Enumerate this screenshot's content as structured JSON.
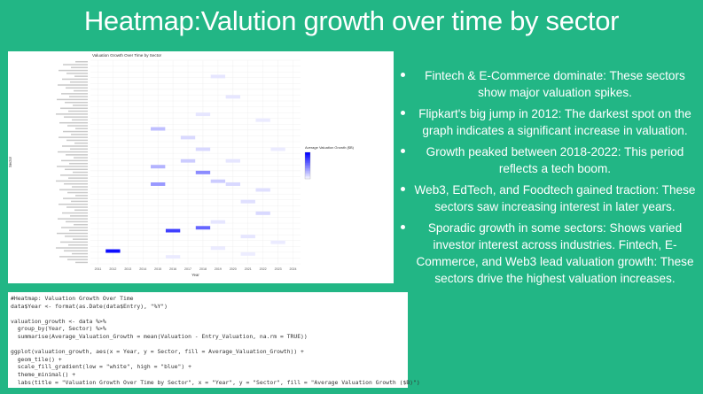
{
  "slide": {
    "title": "Heatmap:Valution growth over time by sector"
  },
  "bullets": [
    "Fintech & E-Commerce dominate: These sectors show major valuation spikes.",
    "Flipkart's big jump in 2012: The darkest spot on the graph indicates a significant increase in valuation.",
    "Growth peaked between 2018-2022: This period reflects a tech boom.",
    "Web3, EdTech, and Foodtech gained traction: These sectors saw increasing interest in later years.",
    "Sporadic growth in some sectors: Shows varied investor interest across industries. Fintech, E-Commerce, and Web3 lead valuation growth: These sectors drive the highest valuation increases."
  ],
  "code_lines": [
    "#Heatmap: Valuation Growth Over Time",
    "data$Year <- format(as.Date(data$Entry), \"%Y\")",
    "",
    "valuation_growth <- data %>%",
    "  group_by(Year, Sector) %>%",
    "  summarise(Average_Valuation_Growth = mean(Valuation - Entry_Valuation, na.rm = TRUE))",
    "",
    "ggplot(valuation_growth, aes(x = Year, y = Sector, fill = Average_Valuation_Growth)) +",
    "  geom_tile() +",
    "  scale_fill_gradient(low = \"white\", high = \"blue\") +",
    "  theme_minimal() +",
    "  labs(title = \"Valuation Growth Over Time by Sector\", x = \"Year\", y = \"Sector\", fill = \"Average Valuation Growth ($B)\")"
  ],
  "chart_data": {
    "type": "heatmap",
    "title": "Valuation Growth Over Time by Sector",
    "xlabel": "Year",
    "ylabel": "Sector",
    "legend_title": "Average Valuation Growth ($B)",
    "legend_position": "right",
    "color_low": "#ffffff",
    "color_high": "#0000ff",
    "value_range": [
      0,
      1
    ],
    "x": [
      "2011",
      "2012",
      "2013",
      "2014",
      "2015",
      "2016",
      "2017",
      "2018",
      "2019",
      "2020",
      "2021",
      "2022",
      "2023",
      "2024"
    ],
    "y_count": 70,
    "tiles": [
      {
        "x": "2012",
        "y_index": 65,
        "value": 0.95
      },
      {
        "x": "2016",
        "y_index": 58,
        "value": 0.75
      },
      {
        "x": "2018",
        "y_index": 57,
        "value": 0.6
      },
      {
        "x": "2018",
        "y_index": 38,
        "value": 0.45
      },
      {
        "x": "2015",
        "y_index": 42,
        "value": 0.4
      },
      {
        "x": "2015",
        "y_index": 36,
        "value": 0.3
      },
      {
        "x": "2015",
        "y_index": 23,
        "value": 0.25
      },
      {
        "x": "2017",
        "y_index": 34,
        "value": 0.2
      },
      {
        "x": "2019",
        "y_index": 41,
        "value": 0.2
      },
      {
        "x": "2017",
        "y_index": 26,
        "value": 0.15
      },
      {
        "x": "2018",
        "y_index": 30,
        "value": 0.15
      },
      {
        "x": "2020",
        "y_index": 42,
        "value": 0.15
      },
      {
        "x": "2022",
        "y_index": 52,
        "value": 0.15
      },
      {
        "x": "2019",
        "y_index": 5,
        "value": 0.1
      },
      {
        "x": "2018",
        "y_index": 18,
        "value": 0.1
      },
      {
        "x": "2020",
        "y_index": 12,
        "value": 0.1
      },
      {
        "x": "2020",
        "y_index": 34,
        "value": 0.1
      },
      {
        "x": "2021",
        "y_index": 48,
        "value": 0.12
      },
      {
        "x": "2021",
        "y_index": 60,
        "value": 0.1
      },
      {
        "x": "2022",
        "y_index": 44,
        "value": 0.12
      },
      {
        "x": "2019",
        "y_index": 55,
        "value": 0.1
      },
      {
        "x": "2023",
        "y_index": 30,
        "value": 0.08
      },
      {
        "x": "2023",
        "y_index": 62,
        "value": 0.08
      },
      {
        "x": "2016",
        "y_index": 67,
        "value": 0.08
      },
      {
        "x": "2022",
        "y_index": 20,
        "value": 0.08
      },
      {
        "x": "2019",
        "y_index": 64,
        "value": 0.08
      },
      {
        "x": "2021",
        "y_index": 66,
        "value": 0.07
      }
    ]
  }
}
